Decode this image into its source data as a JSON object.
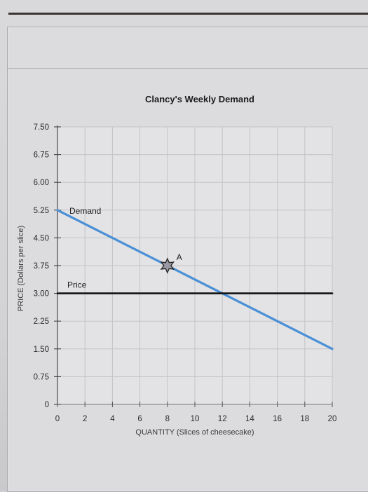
{
  "chart_data": {
    "type": "line",
    "title": "Clancy's Weekly Demand",
    "xlabel": "QUANTITY (Slices of cheesecake)",
    "ylabel": "PRICE (Dollars per slice)",
    "xlim": [
      0,
      20
    ],
    "ylim": [
      0,
      7.5
    ],
    "x_ticks": [
      "0",
      "2",
      "4",
      "6",
      "8",
      "10",
      "12",
      "14",
      "16",
      "18",
      "20"
    ],
    "y_ticks": [
      "0",
      "0.75",
      "1.50",
      "2.25",
      "3.00",
      "3.75",
      "4.50",
      "5.25",
      "6.00",
      "6.75",
      "7.50"
    ],
    "grid": true,
    "series": [
      {
        "name": "Demand",
        "color": "#4a90d6",
        "x": [
          0,
          20
        ],
        "y": [
          5.25,
          1.5
        ]
      },
      {
        "name": "Price",
        "color": "#111111",
        "x": [
          0,
          20
        ],
        "y": [
          3.0,
          3.0
        ]
      }
    ],
    "points": [
      {
        "label": "A",
        "x": 8,
        "y": 3.75,
        "marker": "star-icon"
      }
    ]
  }
}
